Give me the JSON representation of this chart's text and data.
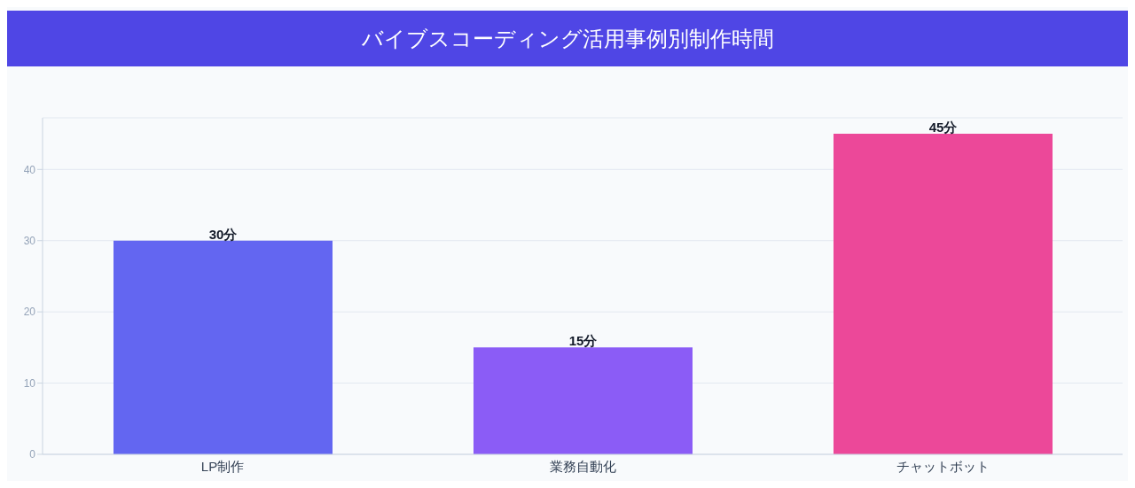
{
  "chart_data": {
    "type": "bar",
    "title": "バイブスコーディング活用事例別制作時間",
    "categories": [
      "LP制作",
      "業務自動化",
      "チャットボット"
    ],
    "values": [
      30,
      15,
      45
    ],
    "colors": [
      "#6366f1",
      "#8b5cf6",
      "#ec4899"
    ],
    "value_labels": [
      "30分",
      "15分",
      "45分"
    ],
    "ylim": [
      0,
      47.25
    ],
    "yticks": [
      0,
      10,
      20,
      30,
      40
    ],
    "grid": "y"
  }
}
